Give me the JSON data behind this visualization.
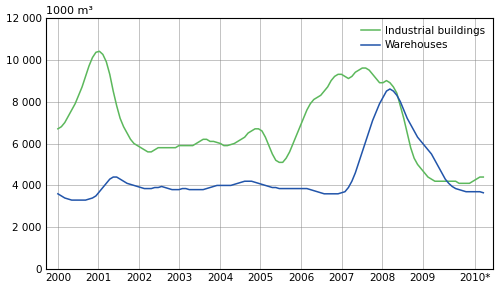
{
  "title": "1000 m³",
  "legend": [
    "Industrial buildings",
    "Warehouses"
  ],
  "line_colors": [
    "#5cb85c",
    "#2255aa"
  ],
  "ylim": [
    0,
    12000
  ],
  "yticks": [
    0,
    2000,
    4000,
    6000,
    8000,
    10000,
    12000
  ],
  "ytick_labels": [
    "0",
    "2 000",
    "4 000",
    "6 000",
    "8 000",
    "10 000",
    "12 000"
  ],
  "xtick_labels": [
    "2000",
    "2001",
    "2002",
    "2003",
    "2004",
    "2005",
    "2006",
    "2007",
    "2008",
    "2009",
    "2010*"
  ],
  "xlim_start": 2000.0,
  "xlim_end": 2010.75,
  "industrial": [
    6700,
    6800,
    7000,
    7300,
    7600,
    7900,
    8300,
    8700,
    9200,
    9700,
    10100,
    10350,
    10400,
    10250,
    9900,
    9300,
    8500,
    7800,
    7200,
    6800,
    6500,
    6200,
    6000,
    5900,
    5800,
    5700,
    5600,
    5600,
    5700,
    5800,
    5800,
    5800,
    5800,
    5800,
    5800,
    5900,
    5900,
    5900,
    5900,
    5900,
    6000,
    6100,
    6200,
    6200,
    6100,
    6100,
    6050,
    6000,
    5900,
    5900,
    5950,
    6000,
    6100,
    6200,
    6300,
    6500,
    6600,
    6700,
    6700,
    6600,
    6300,
    5900,
    5500,
    5200,
    5100,
    5100,
    5300,
    5600,
    6000,
    6400,
    6800,
    7200,
    7600,
    7900,
    8100,
    8200,
    8300,
    8500,
    8700,
    9000,
    9200,
    9300,
    9300,
    9200,
    9100,
    9200,
    9400,
    9500,
    9600,
    9600,
    9500,
    9300,
    9100,
    8900,
    8900,
    9000,
    8900,
    8700,
    8400,
    7800,
    7200,
    6500,
    5800,
    5300,
    5000,
    4800,
    4600,
    4400,
    4300,
    4200,
    4200,
    4200,
    4200,
    4200,
    4200,
    4200,
    4100,
    4100,
    4100,
    4100,
    4200,
    4300,
    4400,
    4400
  ],
  "warehouses": [
    3600,
    3500,
    3400,
    3350,
    3300,
    3300,
    3300,
    3300,
    3300,
    3350,
    3400,
    3500,
    3700,
    3900,
    4100,
    4300,
    4400,
    4400,
    4300,
    4200,
    4100,
    4050,
    4000,
    3950,
    3900,
    3850,
    3850,
    3850,
    3900,
    3900,
    3950,
    3900,
    3850,
    3800,
    3800,
    3800,
    3850,
    3850,
    3800,
    3800,
    3800,
    3800,
    3800,
    3850,
    3900,
    3950,
    4000,
    4000,
    4000,
    4000,
    4000,
    4050,
    4100,
    4150,
    4200,
    4200,
    4200,
    4150,
    4100,
    4050,
    4000,
    3950,
    3900,
    3900,
    3850,
    3850,
    3850,
    3850,
    3850,
    3850,
    3850,
    3850,
    3850,
    3800,
    3750,
    3700,
    3650,
    3600,
    3600,
    3600,
    3600,
    3600,
    3650,
    3700,
    3900,
    4200,
    4600,
    5100,
    5600,
    6100,
    6600,
    7100,
    7500,
    7900,
    8200,
    8500,
    8600,
    8500,
    8300,
    8000,
    7600,
    7200,
    6900,
    6600,
    6300,
    6100,
    5900,
    5700,
    5500,
    5200,
    4900,
    4600,
    4300,
    4100,
    3950,
    3850,
    3800,
    3750,
    3700,
    3700,
    3700,
    3700,
    3700,
    3650
  ]
}
